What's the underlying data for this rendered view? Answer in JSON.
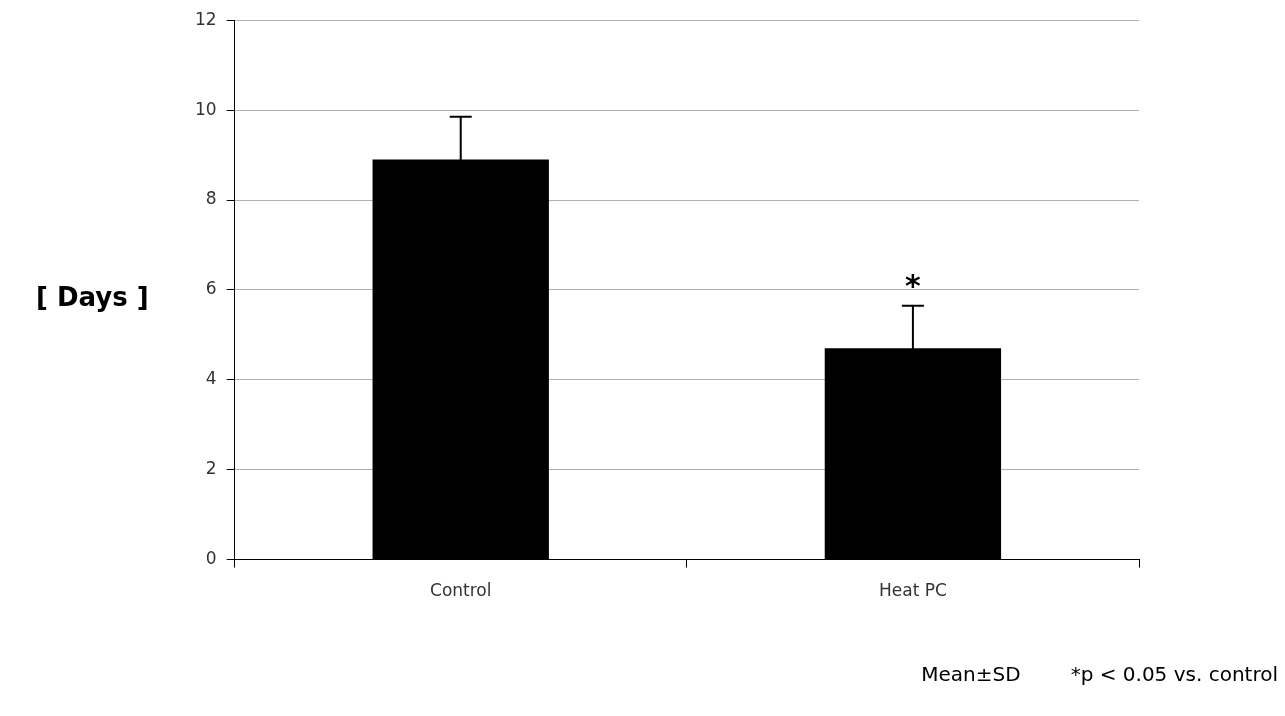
{
  "chart_data": {
    "type": "bar",
    "ylabel": "[ Days ]",
    "categories": [
      "Control",
      "Heat PC"
    ],
    "series": [
      {
        "color": "#000000",
        "values": [
          8.9,
          4.7
        ],
        "errors": [
          0.95,
          0.95
        ]
      }
    ],
    "ylim": [
      0,
      12
    ],
    "yticks": [
      0,
      2,
      4,
      6,
      8,
      10,
      12
    ],
    "grid": "y",
    "legend": false,
    "annotations": [
      {
        "text": "*",
        "x": "Heat PC",
        "y": 5.65
      },
      "Mean±SD",
      "*p < 0.05 vs. control"
    ]
  }
}
